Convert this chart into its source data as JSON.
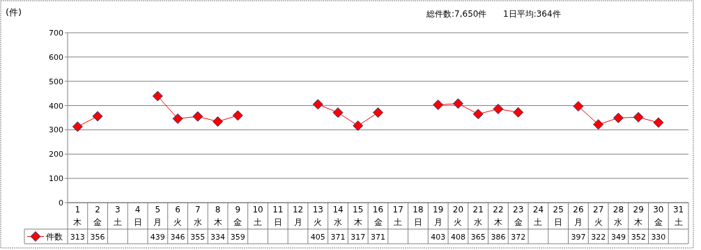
{
  "chart_data": {
    "type": "line",
    "ylabel": "(件)",
    "annotations": [
      "総件数:7,650件",
      "1日平均:364件"
    ],
    "categories": [
      "1\n木",
      "2\n金",
      "3\n土",
      "4\n日",
      "5\n月",
      "6\n火",
      "7\n水",
      "8\n木",
      "9\n金",
      "10\n土",
      "11\n日",
      "12\n月",
      "13\n火",
      "14\n水",
      "15\n木",
      "16\n金",
      "17\n土",
      "18\n日",
      "19\n月",
      "20\n火",
      "21\n水",
      "22\n木",
      "23\n金",
      "24\n土",
      "25\n日",
      "26\n月",
      "27\n火",
      "28\n水",
      "29\n木",
      "30\n金",
      "31\n土"
    ],
    "series": [
      {
        "name": "件数",
        "color": "#ff0000",
        "values": [
          313,
          356,
          null,
          null,
          439,
          346,
          355,
          334,
          359,
          null,
          null,
          null,
          405,
          371,
          317,
          371,
          null,
          null,
          403,
          408,
          365,
          386,
          372,
          null,
          null,
          397,
          322,
          349,
          352,
          330,
          null
        ]
      }
    ],
    "ylim": [
      0,
      700
    ],
    "yticks": [
      0,
      100,
      200,
      300,
      400,
      500,
      600,
      700
    ],
    "grid": "y",
    "marker": "diamond",
    "line_style": "solid",
    "data_labels": true,
    "legend": "bottom"
  }
}
